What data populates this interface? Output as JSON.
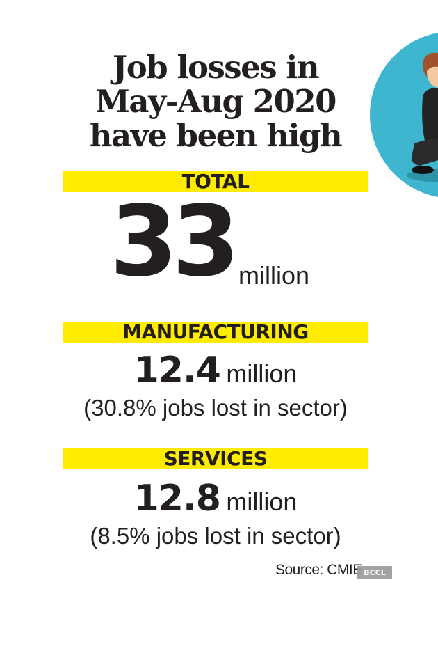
{
  "headline": {
    "line1": "Job losses in",
    "line2": "May-Aug 2020",
    "line3": "have been high"
  },
  "total": {
    "label": "TOTAL",
    "value": "33",
    "unit": "million"
  },
  "manufacturing": {
    "label": "MANUFACTURING",
    "value": "12.4",
    "unit": "million",
    "note": "(30.8% jobs lost in sector)"
  },
  "services": {
    "label": "SERVICES",
    "value": "12.8",
    "unit": "million",
    "note": "(8.5% jobs lost in sector)"
  },
  "source": "Source: CMIE",
  "watermark": "BCCL",
  "colors": {
    "band": "#ffec00",
    "text": "#231f20",
    "circle": "#3fb6cf"
  },
  "illustration": {
    "icon": "worried-person-icon"
  }
}
